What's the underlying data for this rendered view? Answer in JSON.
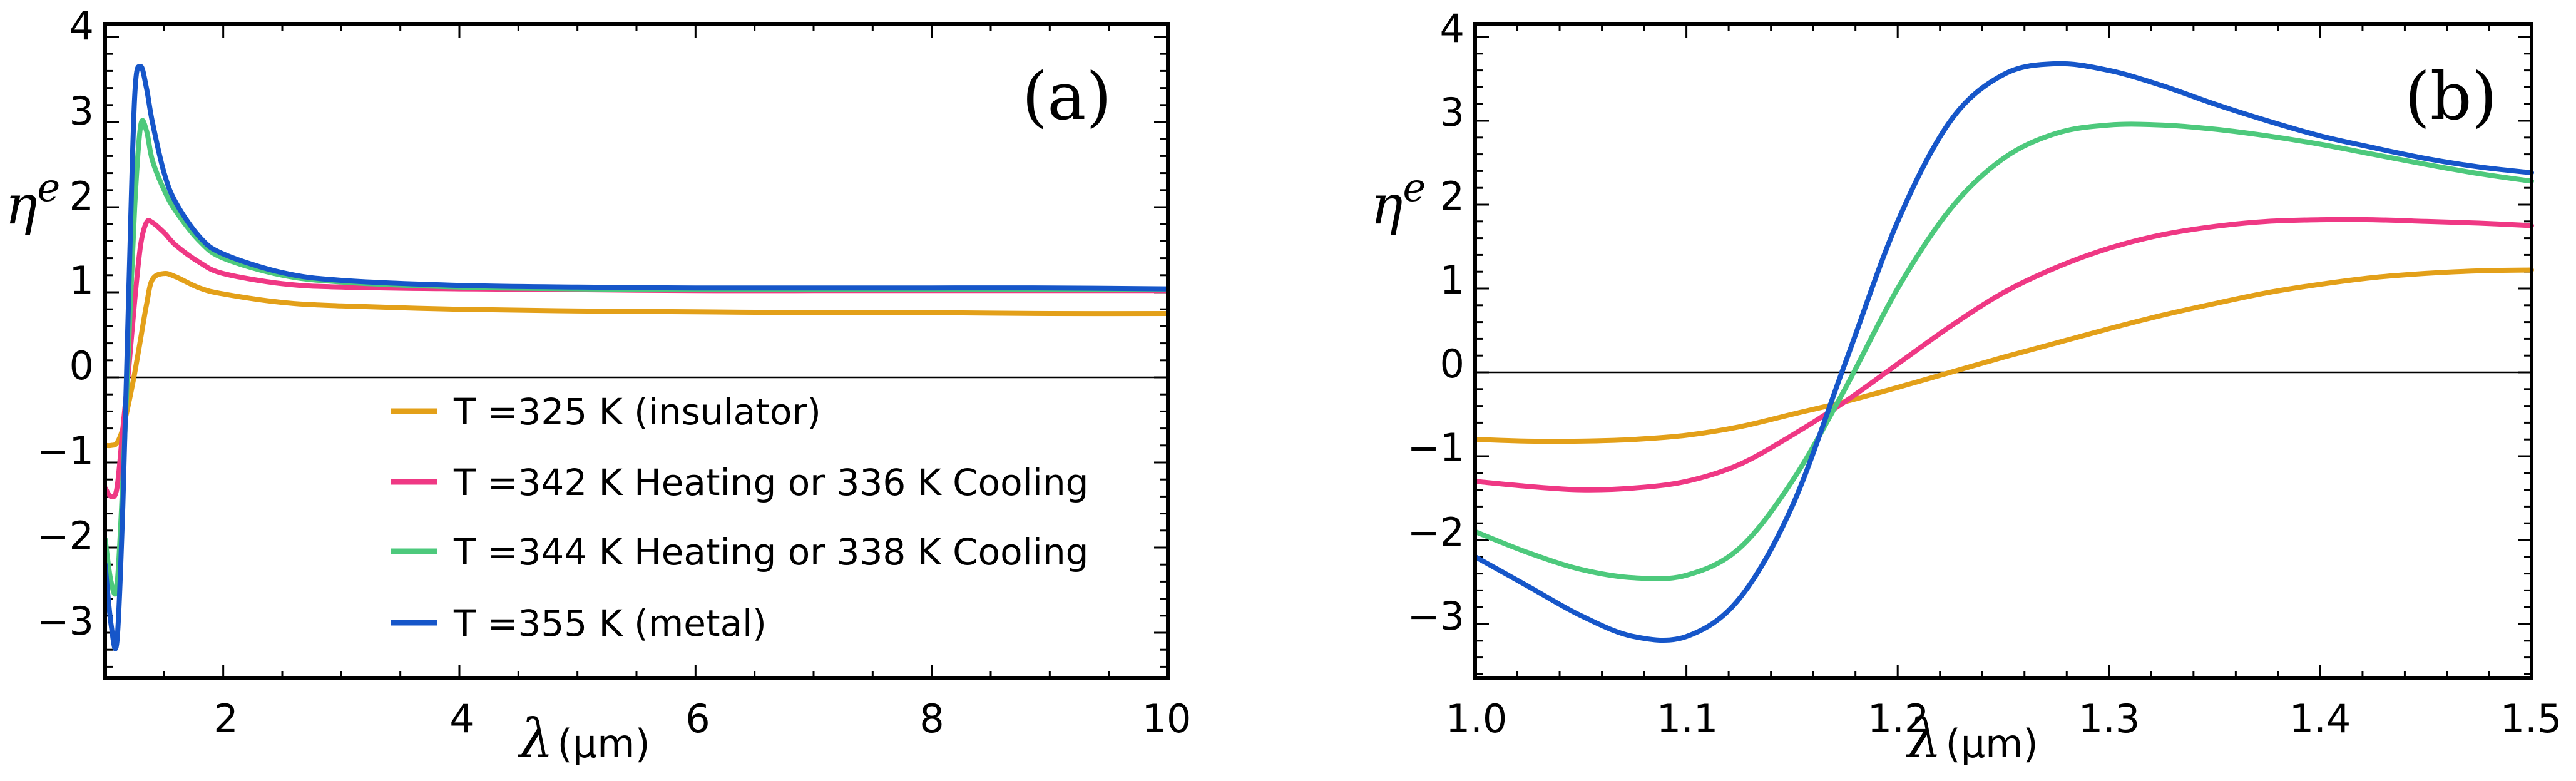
{
  "legend": [
    {
      "label": "T =325 K (insulator)",
      "color": "#E3A019"
    },
    {
      "label": "T =342 K Heating or 336 K Cooling",
      "color": "#EF3884"
    },
    {
      "label": "T =344 K Heating or 338 K Cooling",
      "color": "#4DC97C"
    },
    {
      "label": "T =355 K (metal)",
      "color": "#1656C9"
    }
  ],
  "chart_data": [
    {
      "type": "line",
      "panel_label": "(a)",
      "ylabel": "η",
      "ylabel_sup": "e",
      "xlabel": "λ",
      "xlabel_unit": "(μm)",
      "xlim": [
        1.0,
        10.0
      ],
      "ylim": [
        -3.6,
        4.0
      ],
      "xticks": [
        2,
        4,
        6,
        8,
        10
      ],
      "yticks": [
        -3,
        -2,
        -1,
        0,
        1,
        2,
        3,
        4
      ],
      "zero_line": true,
      "series": [
        {
          "name": "T =325 K (insulator)",
          "color": "#E3A019",
          "x": [
            1.0,
            1.05,
            1.1,
            1.15,
            1.2,
            1.25,
            1.3,
            1.35,
            1.4,
            1.5,
            1.6,
            1.8,
            2.0,
            2.5,
            3.0,
            4.0,
            5.0,
            6.0,
            7.0,
            8.0,
            9.0,
            10.0
          ],
          "y": [
            -0.8,
            -0.8,
            -0.77,
            -0.6,
            -0.3,
            0.05,
            0.45,
            0.85,
            1.15,
            1.22,
            1.18,
            1.05,
            0.98,
            0.88,
            0.84,
            0.8,
            0.78,
            0.77,
            0.76,
            0.76,
            0.75,
            0.75
          ]
        },
        {
          "name": "T =342 K Heating or 336 K Cooling",
          "color": "#EF3884",
          "x": [
            1.0,
            1.05,
            1.1,
            1.15,
            1.2,
            1.25,
            1.3,
            1.35,
            1.4,
            1.5,
            1.6,
            1.8,
            2.0,
            2.5,
            3.0,
            4.0,
            5.0,
            6.0,
            7.0,
            8.0,
            9.0,
            10.0
          ],
          "y": [
            -1.3,
            -1.4,
            -1.3,
            -0.6,
            0.1,
            0.9,
            1.55,
            1.82,
            1.82,
            1.7,
            1.55,
            1.35,
            1.22,
            1.1,
            1.06,
            1.04,
            1.03,
            1.02,
            1.02,
            1.02,
            1.02,
            1.02
          ]
        },
        {
          "name": "T =344 K Heating or 338 K Cooling",
          "color": "#4DC97C",
          "x": [
            1.0,
            1.05,
            1.1,
            1.15,
            1.2,
            1.25,
            1.3,
            1.35,
            1.4,
            1.5,
            1.6,
            1.8,
            2.0,
            2.5,
            3.0,
            4.0,
            5.0,
            6.0,
            7.0,
            8.0,
            9.0,
            10.0
          ],
          "y": [
            -1.9,
            -2.4,
            -2.45,
            -1.2,
            0.4,
            2.0,
            2.95,
            2.9,
            2.55,
            2.2,
            1.95,
            1.6,
            1.4,
            1.2,
            1.12,
            1.06,
            1.04,
            1.03,
            1.03,
            1.03,
            1.03,
            1.03
          ]
        },
        {
          "name": "T =355 K (metal)",
          "color": "#1656C9",
          "x": [
            1.0,
            1.05,
            1.1,
            1.15,
            1.2,
            1.25,
            1.3,
            1.35,
            1.4,
            1.5,
            1.6,
            1.8,
            2.0,
            2.5,
            3.0,
            4.0,
            5.0,
            6.0,
            7.0,
            8.0,
            9.0,
            10.0
          ],
          "y": [
            -2.2,
            -2.9,
            -3.1,
            -1.5,
            1.0,
            3.3,
            3.65,
            3.4,
            3.0,
            2.4,
            2.05,
            1.65,
            1.45,
            1.23,
            1.14,
            1.08,
            1.06,
            1.05,
            1.05,
            1.05,
            1.05,
            1.04
          ]
        }
      ]
    },
    {
      "type": "line",
      "panel_label": "(b)",
      "ylabel": "η",
      "ylabel_sup": "e",
      "xlabel": "λ",
      "xlabel_unit": "(μm)",
      "xlim": [
        1.0,
        1.5
      ],
      "ylim": [
        -3.6,
        4.2
      ],
      "xticks": [
        1.0,
        1.1,
        1.2,
        1.3,
        1.4,
        1.5
      ],
      "xticklabels": [
        "1.0",
        "1.1",
        "1.2",
        "1.3",
        "1.4",
        "1.5"
      ],
      "yticks": [
        -3,
        -2,
        -1,
        0,
        1,
        2,
        3,
        4
      ],
      "zero_line": true,
      "series": [
        {
          "name": "T =325 K (insulator)",
          "color": "#E3A019",
          "x": [
            1.0,
            1.025,
            1.05,
            1.075,
            1.1,
            1.125,
            1.15,
            1.175,
            1.2,
            1.225,
            1.25,
            1.275,
            1.3,
            1.325,
            1.35,
            1.375,
            1.4,
            1.425,
            1.45,
            1.475,
            1.5
          ],
          "y": [
            -0.8,
            -0.82,
            -0.82,
            -0.8,
            -0.75,
            -0.65,
            -0.5,
            -0.35,
            -0.18,
            0.0,
            0.18,
            0.35,
            0.52,
            0.68,
            0.82,
            0.95,
            1.05,
            1.13,
            1.18,
            1.21,
            1.22
          ]
        },
        {
          "name": "T =342 K Heating or 336 K Cooling",
          "color": "#EF3884",
          "x": [
            1.0,
            1.025,
            1.05,
            1.075,
            1.1,
            1.125,
            1.15,
            1.175,
            1.2,
            1.225,
            1.25,
            1.275,
            1.3,
            1.325,
            1.35,
            1.375,
            1.4,
            1.425,
            1.45,
            1.475,
            1.5
          ],
          "y": [
            -1.3,
            -1.36,
            -1.4,
            -1.38,
            -1.3,
            -1.1,
            -0.75,
            -0.35,
            0.1,
            0.55,
            0.95,
            1.25,
            1.48,
            1.64,
            1.74,
            1.8,
            1.82,
            1.82,
            1.8,
            1.78,
            1.75
          ]
        },
        {
          "name": "T =344 K Heating or 338 K Cooling",
          "color": "#4DC97C",
          "x": [
            1.0,
            1.025,
            1.05,
            1.075,
            1.1,
            1.125,
            1.15,
            1.175,
            1.2,
            1.225,
            1.25,
            1.275,
            1.3,
            1.325,
            1.35,
            1.375,
            1.4,
            1.425,
            1.45,
            1.475,
            1.5
          ],
          "y": [
            -1.9,
            -2.15,
            -2.35,
            -2.45,
            -2.42,
            -2.1,
            -1.3,
            -0.2,
            1.0,
            1.95,
            2.55,
            2.85,
            2.95,
            2.95,
            2.9,
            2.82,
            2.72,
            2.6,
            2.48,
            2.37,
            2.28
          ]
        },
        {
          "name": "T =355 K (metal)",
          "color": "#1656C9",
          "x": [
            1.0,
            1.025,
            1.05,
            1.075,
            1.1,
            1.125,
            1.15,
            1.175,
            1.2,
            1.225,
            1.25,
            1.275,
            1.3,
            1.325,
            1.35,
            1.375,
            1.4,
            1.425,
            1.45,
            1.475,
            1.5
          ],
          "y": [
            -2.2,
            -2.55,
            -2.9,
            -3.15,
            -3.15,
            -2.7,
            -1.6,
            0.1,
            1.8,
            3.0,
            3.55,
            3.68,
            3.6,
            3.42,
            3.2,
            3.0,
            2.82,
            2.68,
            2.55,
            2.45,
            2.38
          ]
        }
      ]
    }
  ]
}
